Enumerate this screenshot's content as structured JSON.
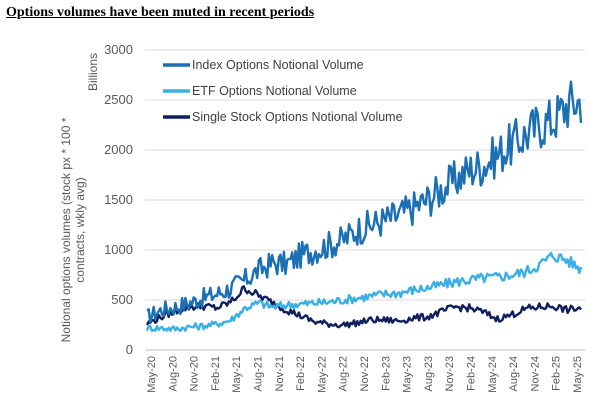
{
  "chart_data": {
    "type": "line",
    "title": "Options volumes have been muted in recent periods",
    "ylabel_lines": [
      "Notional options volumes (stock px * 100 *",
      "contracts, wkly avg)"
    ],
    "unit_label": "Billions",
    "ylim": [
      0,
      3000
    ],
    "yticks": [
      "0",
      "500",
      "1000",
      "1500",
      "2000",
      "2500",
      "3000"
    ],
    "grid": true,
    "legend_position": "top-left",
    "xticks": [
      "May-20",
      "Aug-20",
      "Nov-20",
      "Feb-21",
      "May-21",
      "Aug-21",
      "Nov-21",
      "Feb-22",
      "May-22",
      "Aug-22",
      "Nov-22",
      "Feb-23",
      "May-23",
      "Aug-23",
      "Nov-23",
      "Feb-24",
      "May-24",
      "Aug-24",
      "Nov-24",
      "Feb-25",
      "May-25"
    ],
    "series": [
      {
        "name": "Index Options Notional Volume",
        "color": "#1a6fb5",
        "values": [
          330,
          400,
          430,
          470,
          520,
          560,
          620,
          700,
          800,
          870,
          860,
          950,
          1000,
          1050,
          1100,
          1200,
          1250,
          1300,
          1350,
          1420,
          1500,
          1600,
          1700,
          1800,
          1850,
          1950,
          2050,
          2150,
          2250,
          2300,
          2450,
          2500
        ]
      },
      {
        "name": "ETF Options Notional Volume",
        "color": "#38b0e6",
        "values": [
          220,
          220,
          210,
          230,
          240,
          260,
          300,
          420,
          470,
          430,
          450,
          460,
          470,
          480,
          500,
          520,
          540,
          560,
          570,
          600,
          620,
          650,
          680,
          700,
          720,
          730,
          750,
          780,
          850,
          950,
          900,
          810
        ]
      },
      {
        "name": "Single Stock Options Notional Volume",
        "color": "#0f1f5c",
        "values": [
          260,
          330,
          390,
          430,
          440,
          420,
          480,
          620,
          540,
          470,
          400,
          340,
          280,
          260,
          250,
          270,
          300,
          300,
          290,
          320,
          330,
          380,
          430,
          420,
          380,
          310,
          350,
          410,
          430,
          440,
          400,
          420
        ]
      }
    ]
  }
}
